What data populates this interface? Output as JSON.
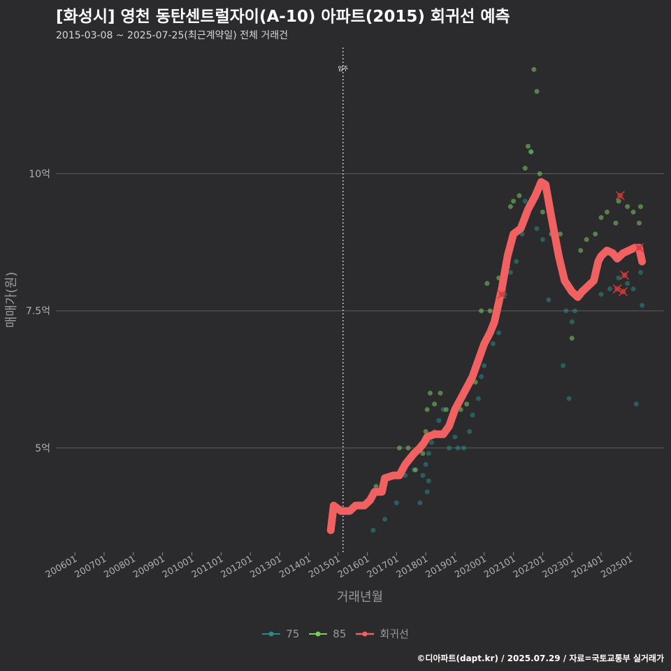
{
  "header": {
    "title": "[화성시] 영천 동탄센트럴자이(A-10) 아파트(2015) 회귀선 예측",
    "subtitle": "2015-03-08 ~ 2025-07-25(최근계약일) 전체 거래건"
  },
  "caption": "©디아파트(dapt.kr) / 2025.07.29 / 자료=국토교통부 실거래가",
  "chart_data": {
    "type": "scatter",
    "xlabel": "거래년월",
    "ylabel": "매매가(원)",
    "x_tick_labels": [
      "200601",
      "200701",
      "200801",
      "200901",
      "201001",
      "201101",
      "201201",
      "201301",
      "201401",
      "201501",
      "201601",
      "201701",
      "201801",
      "201901",
      "202001",
      "202101",
      "202201",
      "202301",
      "202401",
      "202501"
    ],
    "y_ticks": [
      5,
      7.5,
      10
    ],
    "y_tick_labels": [
      "5억",
      "7.5억",
      "10억"
    ],
    "ylim": [
      3.1,
      12.3
    ],
    "xlim": [
      2005.35,
      2026.15
    ],
    "grid": true,
    "legend_position": "bottom",
    "annotation": {
      "x": 2015.17,
      "label": "입주"
    },
    "colors": {
      "75": "#2a8a86",
      "85": "#7ecb62",
      "regression": "#f06262",
      "forecast_marker": "#d33b3b"
    },
    "series": [
      {
        "name": "75",
        "points": [
          [
            2016.2,
            3.5
          ],
          [
            2016.6,
            3.7
          ],
          [
            2017.0,
            4.0
          ],
          [
            2017.3,
            4.5
          ],
          [
            2017.6,
            4.6
          ],
          [
            2017.8,
            4.0
          ],
          [
            2017.9,
            4.5
          ],
          [
            2018.0,
            4.7
          ],
          [
            2018.05,
            4.2
          ],
          [
            2018.1,
            4.4
          ],
          [
            2018.1,
            4.9
          ],
          [
            2018.2,
            5.1
          ],
          [
            2018.3,
            5.3
          ],
          [
            2018.45,
            5.5
          ],
          [
            2018.6,
            5.7
          ],
          [
            2018.8,
            5.0
          ],
          [
            2019.0,
            5.2
          ],
          [
            2019.1,
            5.0
          ],
          [
            2019.3,
            5.0
          ],
          [
            2019.5,
            5.3
          ],
          [
            2019.6,
            5.6
          ],
          [
            2019.8,
            5.9
          ],
          [
            2019.9,
            6.3
          ],
          [
            2020.0,
            6.5
          ],
          [
            2020.3,
            6.9
          ],
          [
            2020.5,
            7.1
          ],
          [
            2020.7,
            7.8
          ],
          [
            2020.9,
            8.2
          ],
          [
            2021.1,
            8.4
          ],
          [
            2021.3,
            8.9
          ],
          [
            2021.4,
            9.5
          ],
          [
            2021.6,
            10.4
          ],
          [
            2021.8,
            9.0
          ],
          [
            2022.0,
            8.8
          ],
          [
            2022.2,
            7.7
          ],
          [
            2022.7,
            6.5
          ],
          [
            2022.8,
            7.5
          ],
          [
            2022.9,
            5.9
          ],
          [
            2023.0,
            7.3
          ],
          [
            2023.1,
            7.5
          ],
          [
            2023.3,
            7.8
          ],
          [
            2023.6,
            8.0
          ],
          [
            2024.0,
            7.8
          ],
          [
            2024.3,
            7.9
          ],
          [
            2024.6,
            8.1
          ],
          [
            2024.9,
            8.0
          ],
          [
            2025.1,
            7.9
          ],
          [
            2025.2,
            5.8
          ],
          [
            2025.35,
            8.2
          ],
          [
            2025.4,
            7.6
          ]
        ]
      },
      {
        "name": "85",
        "points": [
          [
            2016.3,
            4.3
          ],
          [
            2017.1,
            5.0
          ],
          [
            2017.4,
            5.0
          ],
          [
            2017.65,
            4.6
          ],
          [
            2017.9,
            4.9
          ],
          [
            2018.0,
            5.3
          ],
          [
            2018.05,
            5.7
          ],
          [
            2018.15,
            6.0
          ],
          [
            2018.3,
            5.8
          ],
          [
            2018.5,
            6.0
          ],
          [
            2018.7,
            5.7
          ],
          [
            2018.9,
            5.5
          ],
          [
            2019.2,
            5.7
          ],
          [
            2019.4,
            5.8
          ],
          [
            2019.7,
            6.2
          ],
          [
            2019.9,
            7.5
          ],
          [
            2020.1,
            8.0
          ],
          [
            2020.2,
            7.5
          ],
          [
            2020.5,
            8.1
          ],
          [
            2020.8,
            8.3
          ],
          [
            2020.9,
            9.4
          ],
          [
            2021.0,
            9.5
          ],
          [
            2021.2,
            9.6
          ],
          [
            2021.4,
            10.1
          ],
          [
            2021.5,
            10.5
          ],
          [
            2021.6,
            10.4
          ],
          [
            2021.7,
            11.9
          ],
          [
            2021.8,
            11.5
          ],
          [
            2021.9,
            10.0
          ],
          [
            2022.0,
            9.3
          ],
          [
            2022.3,
            8.9
          ],
          [
            2022.6,
            8.9
          ],
          [
            2023.0,
            7.0
          ],
          [
            2023.3,
            8.6
          ],
          [
            2023.5,
            8.8
          ],
          [
            2023.8,
            8.9
          ],
          [
            2024.0,
            9.2
          ],
          [
            2024.2,
            9.3
          ],
          [
            2024.5,
            9.1
          ],
          [
            2024.6,
            9.5
          ],
          [
            2024.9,
            9.4
          ],
          [
            2025.1,
            9.3
          ],
          [
            2025.3,
            9.1
          ],
          [
            2025.35,
            9.4
          ]
        ]
      },
      {
        "name": "회귀선",
        "points": [
          [
            2014.75,
            3.5
          ],
          [
            2014.85,
            3.95
          ],
          [
            2015.1,
            3.85
          ],
          [
            2015.4,
            3.85
          ],
          [
            2015.6,
            3.95
          ],
          [
            2015.9,
            3.95
          ],
          [
            2016.1,
            4.05
          ],
          [
            2016.25,
            4.2
          ],
          [
            2016.5,
            4.2
          ],
          [
            2016.6,
            4.45
          ],
          [
            2016.9,
            4.5
          ],
          [
            2017.1,
            4.5
          ],
          [
            2017.3,
            4.7
          ],
          [
            2017.6,
            4.9
          ],
          [
            2017.8,
            5.0
          ],
          [
            2017.95,
            5.1
          ],
          [
            2018.05,
            5.2
          ],
          [
            2018.3,
            5.25
          ],
          [
            2018.6,
            5.25
          ],
          [
            2018.8,
            5.4
          ],
          [
            2019.0,
            5.7
          ],
          [
            2019.2,
            5.9
          ],
          [
            2019.4,
            6.1
          ],
          [
            2019.6,
            6.3
          ],
          [
            2019.8,
            6.6
          ],
          [
            2020.0,
            6.9
          ],
          [
            2020.2,
            7.1
          ],
          [
            2020.35,
            7.3
          ],
          [
            2020.6,
            7.9
          ],
          [
            2020.8,
            8.5
          ],
          [
            2021.0,
            8.9
          ],
          [
            2021.25,
            9.0
          ],
          [
            2021.5,
            9.35
          ],
          [
            2021.75,
            9.6
          ],
          [
            2021.95,
            9.85
          ],
          [
            2022.1,
            9.8
          ],
          [
            2022.3,
            9.2
          ],
          [
            2022.55,
            8.5
          ],
          [
            2022.75,
            8.05
          ],
          [
            2023.0,
            7.85
          ],
          [
            2023.2,
            7.75
          ],
          [
            2023.35,
            7.85
          ],
          [
            2023.55,
            7.95
          ],
          [
            2023.75,
            8.05
          ],
          [
            2023.9,
            8.4
          ],
          [
            2024.0,
            8.5
          ],
          [
            2024.2,
            8.6
          ],
          [
            2024.4,
            8.55
          ],
          [
            2024.55,
            8.45
          ],
          [
            2024.75,
            8.55
          ],
          [
            2024.95,
            8.6
          ],
          [
            2025.15,
            8.65
          ],
          [
            2025.3,
            8.65
          ],
          [
            2025.4,
            8.4
          ]
        ]
      }
    ],
    "forecast_points": [
      [
        2024.65,
        9.6
      ],
      [
        2024.55,
        7.9
      ],
      [
        2024.75,
        7.85
      ],
      [
        2024.8,
        8.15
      ],
      [
        2025.3,
        8.65
      ],
      [
        2020.6,
        7.8
      ]
    ]
  }
}
